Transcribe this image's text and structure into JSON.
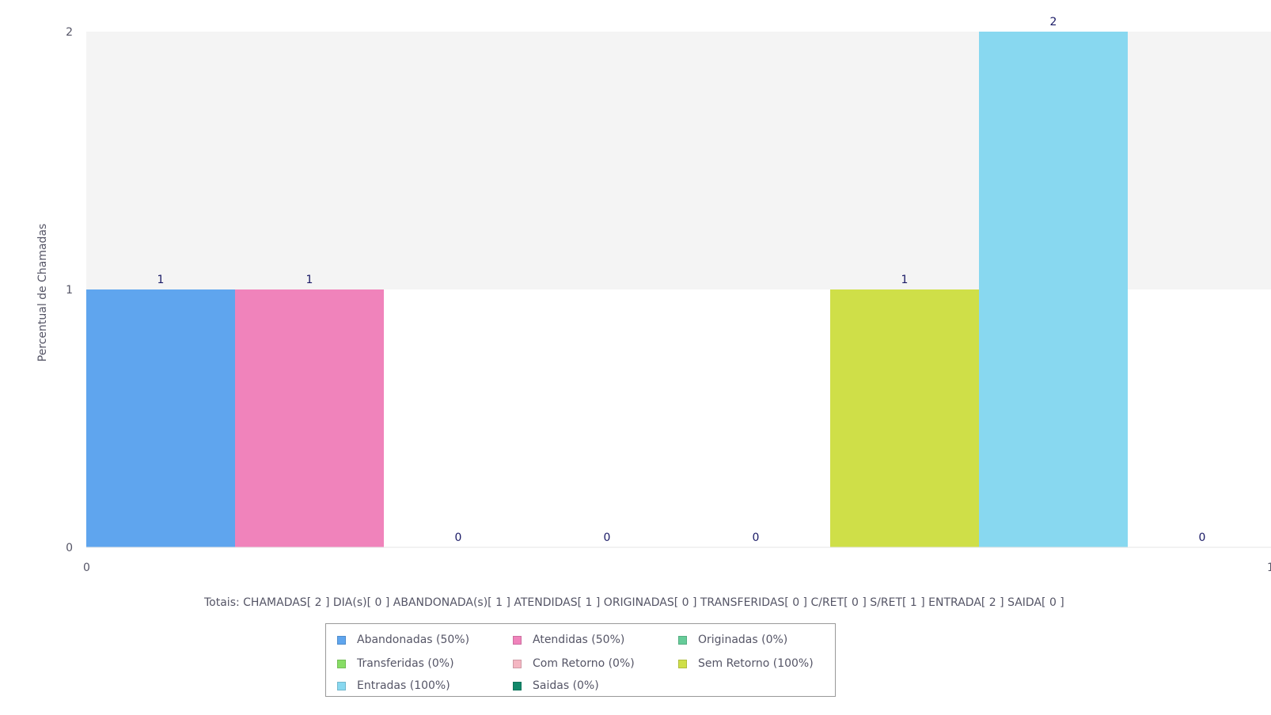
{
  "chart_data": {
    "type": "bar",
    "ylabel": "Percentual de Chamadas",
    "ylim": [
      0,
      2
    ],
    "yticks": [
      "0",
      "1",
      "2"
    ],
    "xlim": [
      0,
      1
    ],
    "xticks": [
      "0",
      "1"
    ],
    "bands": [
      {
        "from": 1,
        "to": 2,
        "color": "#f4f4f4"
      }
    ],
    "series": [
      {
        "name": "Abandonadas (50%)",
        "value": 1,
        "color": "#5fa5ee"
      },
      {
        "name": "Atendidas (50%)",
        "value": 1,
        "color": "#f083bb"
      },
      {
        "name": "Originadas (0%)",
        "value": 0,
        "color": "#66cc99"
      },
      {
        "name": "Transferidas (0%)",
        "value": 0,
        "color": "#88dd66"
      },
      {
        "name": "Com Retorno (0%)",
        "value": 0,
        "color": "#f4b6c2"
      },
      {
        "name": "Sem Retorno (100%)",
        "value": 1,
        "color": "#cfdf48"
      },
      {
        "name": "Entradas (100%)",
        "value": 2,
        "color": "#88d8f0"
      },
      {
        "name": "Saidas (0%)",
        "value": 0,
        "color": "#11886a"
      }
    ],
    "data_labels": [
      "1",
      "1",
      "0",
      "0",
      "0",
      "1",
      "2",
      "0"
    ],
    "totals": "Totais: CHAMADAS[ 2 ]  DIA(s)[ 0 ]  ABANDONADA(s)[ 1 ]  ATENDIDAS[ 1 ]  ORIGINADAS[ 0 ]  TRANSFERIDAS[ 0 ]  C/RET[ 0 ]  S/RET[ 1 ]  ENTRADA[ 2 ]  SAIDA[ 0 ]",
    "legend": {
      "position": "bottom-center",
      "columns": 3
    },
    "colors": {
      "plot_background": "#ffffff",
      "label_text": "#1a1a66",
      "axis_text": "#555566"
    }
  }
}
